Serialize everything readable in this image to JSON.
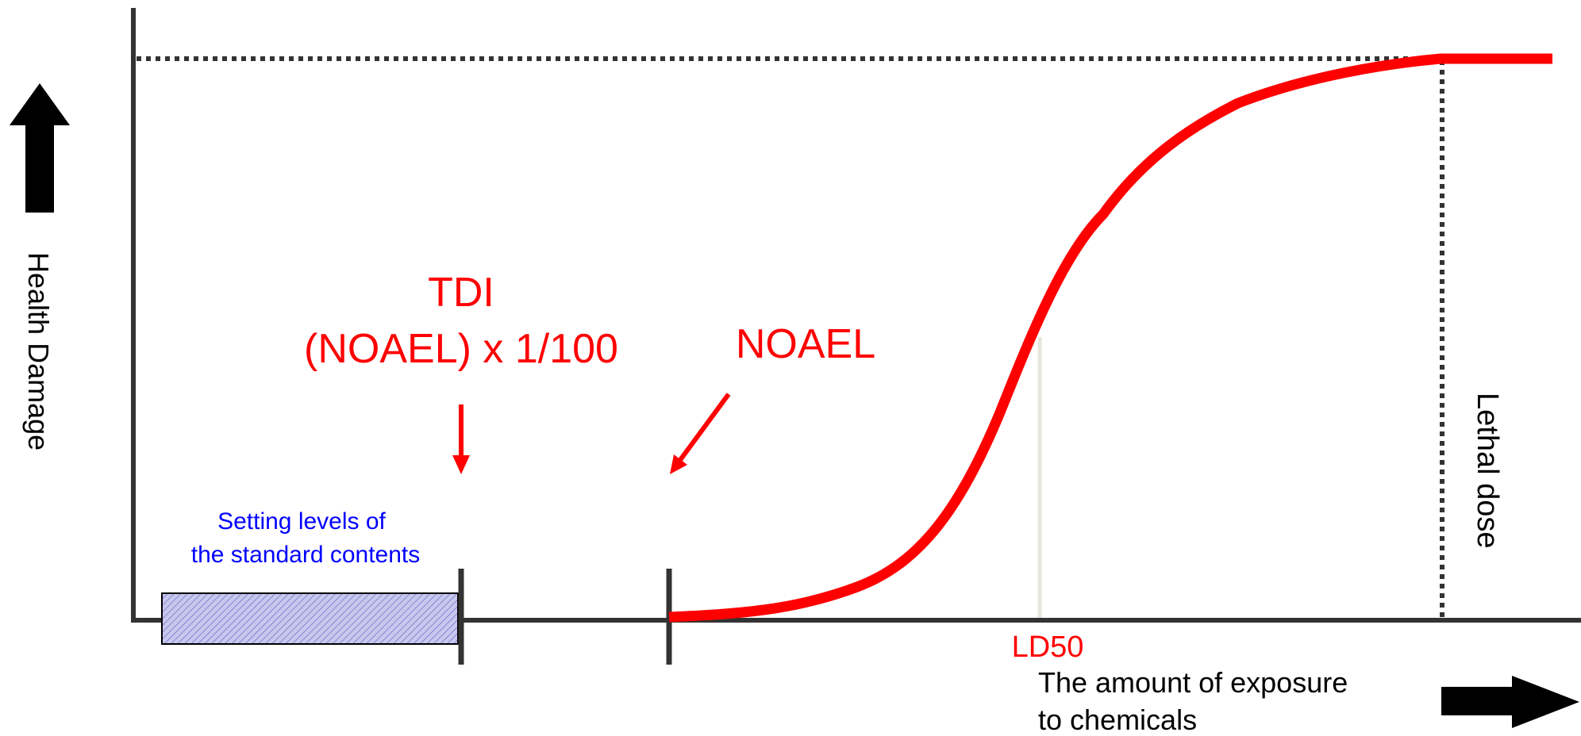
{
  "labels": {
    "y_axis": "Health Damage",
    "x_axis_line1": "The amount of exposure",
    "x_axis_line2": "to chemicals",
    "tdi_line1": "TDI",
    "tdi_line2": "(NOAEL) x 1/100",
    "noael": "NOAEL",
    "ld50": "LD50",
    "lethal_dose": "Lethal dose",
    "standard_line1": "Setting levels of",
    "standard_line2": "the standard contents"
  },
  "colors": {
    "curve": "#ff0000",
    "annotation_red": "#ff0000",
    "annotation_blue": "#0000ff",
    "axis": "#333333",
    "ld50_line": "#e6e6dc",
    "band_fill": "#c8c8ee",
    "band_hatch": "#7070c8"
  }
}
